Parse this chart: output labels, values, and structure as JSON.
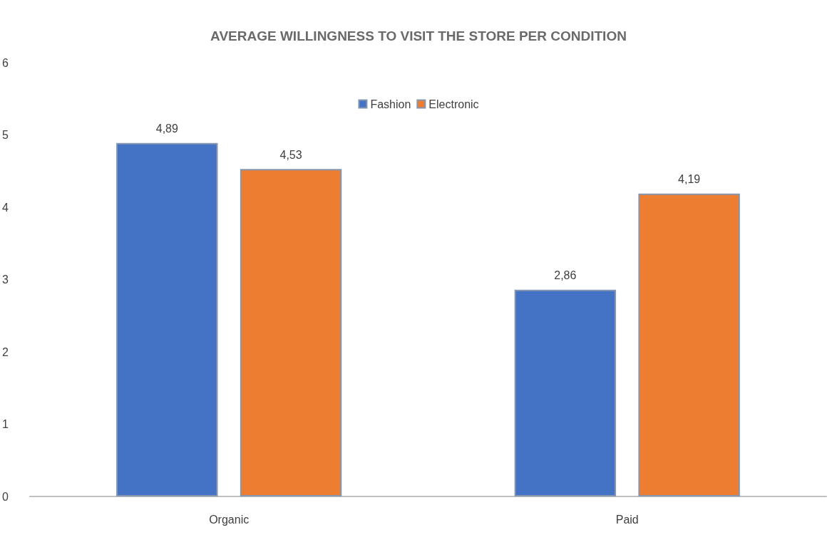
{
  "chart_data": {
    "type": "bar",
    "title": "AVERAGE WILLINGNESS TO VISIT THE STORE PER CONDITION",
    "categories": [
      "Organic",
      "Paid"
    ],
    "series": [
      {
        "name": "Fashion",
        "color": "#4472c4",
        "values": [
          4.89,
          2.86
        ],
        "value_labels": [
          "4,89",
          "2,86"
        ]
      },
      {
        "name": "Electronic",
        "color": "#ed7d31",
        "values": [
          4.53,
          4.19
        ],
        "value_labels": [
          "4,53",
          "4,19"
        ]
      }
    ],
    "ylim": [
      0,
      6
    ],
    "yticks": [
      0,
      1,
      2,
      3,
      4,
      5,
      6
    ],
    "grid": false,
    "legend": "top"
  }
}
